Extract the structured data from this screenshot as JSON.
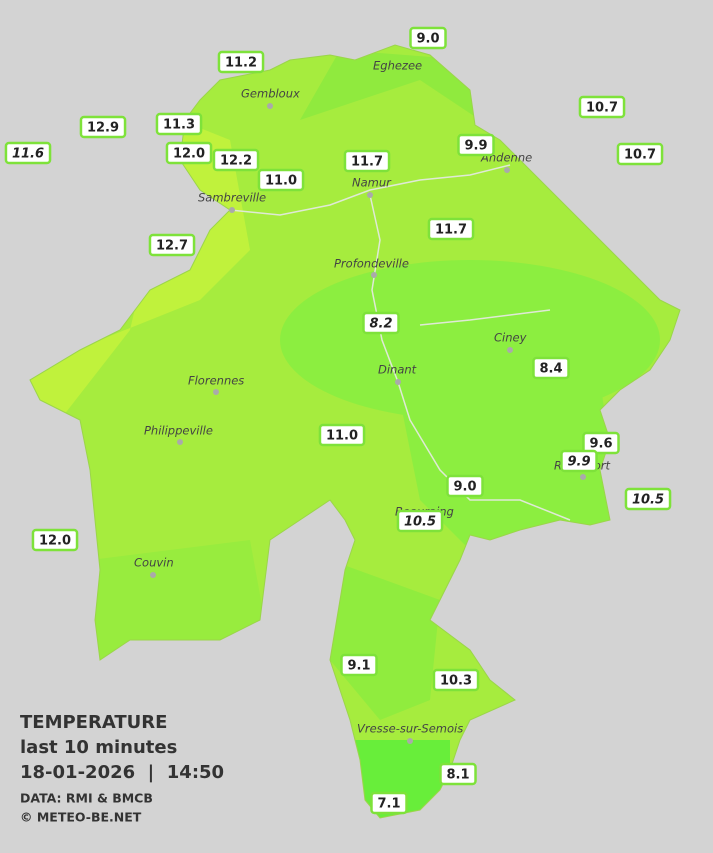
{
  "header": {
    "title": "TEMPERATURE",
    "period": "last 10 minutes",
    "timestamp": "18-01-2026  |  14:50",
    "source": "DATA: RMI & BMCB",
    "credit": "© METEO-BE.NET"
  },
  "towns": [
    "Eghezee",
    "Gembloux",
    "Andenne",
    "Namur",
    "Sambreville",
    "Profondeville",
    "Ciney",
    "Dinant",
    "Florennes",
    "Philippeville",
    "Rochefort",
    "Beauraing",
    "Couvin",
    "Vresse-sur-Semois"
  ],
  "stations": [
    "9.0",
    "11.2",
    "10.7",
    "12.9",
    "11.3",
    "11.6",
    "12.0",
    "12.2",
    "9.9",
    "10.7",
    "11.7",
    "11.0",
    "11.7",
    "12.7",
    "8.2",
    "8.4",
    "11.0",
    "9.6",
    "9.9",
    "9.0",
    "10.5",
    "10.5",
    "12.0",
    "9.1",
    "10.3",
    "8.1",
    "7.1"
  ]
}
